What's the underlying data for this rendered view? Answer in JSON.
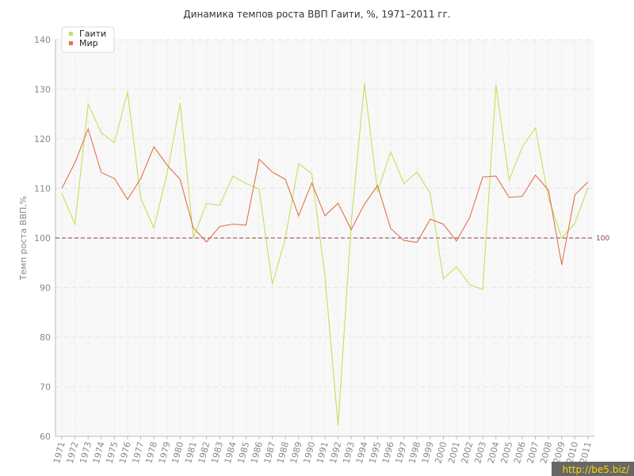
{
  "chart_data": {
    "type": "line",
    "title": "Динамика темпов роста ВВП Гаити, %, 1971–2011 гг.",
    "xlabel": "",
    "ylabel": "Темп роста ВВП,%",
    "ylim": [
      60,
      140
    ],
    "yticks": [
      60,
      70,
      80,
      90,
      100,
      110,
      120,
      130,
      140
    ],
    "categories": [
      "1971",
      "1972",
      "1973",
      "1974",
      "1975",
      "1976",
      "1977",
      "1978",
      "1979",
      "1980",
      "1981",
      "1982",
      "1983",
      "1984",
      "1985",
      "1986",
      "1987",
      "1988",
      "1989",
      "1990",
      "1991",
      "1992",
      "1993",
      "1994",
      "1995",
      "1996",
      "1997",
      "1998",
      "1999",
      "2000",
      "2001",
      "2002",
      "2003",
      "2004",
      "2005",
      "2006",
      "2007",
      "2008",
      "2009",
      "2010",
      "2011"
    ],
    "series": [
      {
        "name": "Гаити",
        "color": "#c4e05a",
        "values": [
          109,
          102.8,
          127,
          121.2,
          119.2,
          129.5,
          108,
          102,
          113,
          127.2,
          100,
          107,
          106.6,
          112.5,
          111,
          109.9,
          90.7,
          100,
          115,
          113,
          92.3,
          62.2,
          103,
          131.2,
          109.3,
          117.4,
          111,
          113.3,
          109,
          91.8,
          94.2,
          90.6,
          89.6,
          130.9,
          111.7,
          118.3,
          122.2,
          108,
          100,
          103,
          110.2
        ]
      },
      {
        "name": "Мир",
        "color": "#e0734a",
        "values": [
          110,
          115.2,
          122,
          113.2,
          112,
          107.8,
          112,
          118.4,
          114.7,
          111.8,
          102,
          99.2,
          102.3,
          102.8,
          102.6,
          115.9,
          113.3,
          111.8,
          104.5,
          111.1,
          104.5,
          107,
          101.7,
          106.8,
          110.6,
          101.9,
          99.5,
          99.1,
          103.8,
          102.8,
          99.4,
          104.1,
          112.3,
          112.5,
          108.2,
          108.4,
          112.7,
          109.6,
          94.6,
          108.7,
          111.3
        ]
      }
    ],
    "reference_line": {
      "value": 100,
      "label": "100",
      "color": "#8b3a4a"
    },
    "grid": true,
    "legend": "top-left"
  },
  "watermark": "http://be5.biz/"
}
